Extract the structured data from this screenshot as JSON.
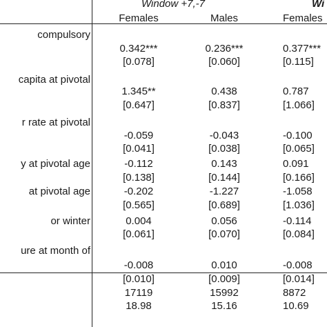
{
  "header": {
    "window_label": "Window +7,-7",
    "window_label_cut": "Wi",
    "columns": [
      "Females",
      "Males",
      "Females"
    ]
  },
  "rows": [
    {
      "label": "compulsory",
      "values": [
        "",
        "",
        ""
      ]
    },
    {
      "label": "",
      "values": [
        "0.342***",
        "0.236***",
        "0.377***"
      ]
    },
    {
      "label": "",
      "values": [
        "[0.078]",
        "[0.060]",
        "[0.115]"
      ]
    },
    {
      "label": "capita at pivotal",
      "values": [
        "",
        "",
        ""
      ]
    },
    {
      "label": "",
      "values": [
        "1.345**",
        "0.438",
        "0.787"
      ]
    },
    {
      "label": "",
      "values": [
        "[0.647]",
        "[0.837]",
        "[1.066]"
      ]
    },
    {
      "label": "r rate at pivotal",
      "values": [
        "",
        "",
        ""
      ]
    },
    {
      "label": "",
      "values": [
        "-0.059",
        "-0.043",
        "-0.100"
      ]
    },
    {
      "label": "",
      "values": [
        "[0.041]",
        "[0.038]",
        "[0.065]"
      ]
    },
    {
      "label": "y at pivotal age",
      "values": [
        "-0.112",
        "0.143",
        "0.091"
      ]
    },
    {
      "label": "",
      "values": [
        "[0.138]",
        "[0.144]",
        "[0.166]"
      ]
    },
    {
      "label": "at pivotal age",
      "values": [
        "-0.202",
        "-1.227",
        "-1.058"
      ]
    },
    {
      "label": "",
      "values": [
        "[0.565]",
        "[0.689]",
        "[1.036]"
      ]
    },
    {
      "label": "or winter",
      "values": [
        "0.004",
        "0.056",
        "-0.114"
      ]
    },
    {
      "label": "",
      "values": [
        "[0.061]",
        "[0.070]",
        "[0.084]"
      ]
    },
    {
      "label": "ure at month of",
      "values": [
        "",
        "",
        ""
      ]
    },
    {
      "label": "",
      "values": [
        "-0.008",
        "0.010",
        "-0.008"
      ]
    },
    {
      "label": "",
      "values": [
        "[0.010]",
        "[0.009]",
        "[0.014]"
      ]
    },
    {
      "label": "",
      "values": [
        "17119",
        "15992",
        "8872"
      ]
    },
    {
      "label": "",
      "values": [
        "18.98",
        "15.16",
        "10.69"
      ]
    }
  ]
}
